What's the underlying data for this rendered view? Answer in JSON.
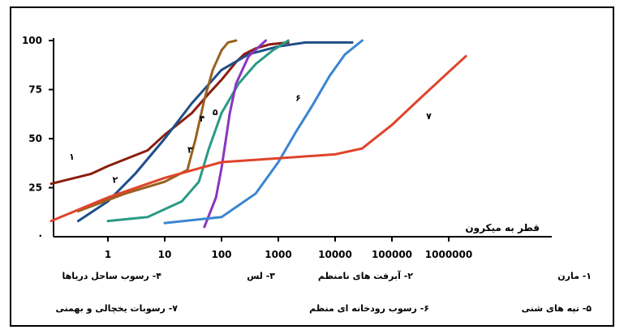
{
  "chart_data": {
    "type": "line",
    "xscale": "log",
    "xlabel": "قطر به میکرون",
    "x_tick_labels": [
      "1",
      "10",
      "100",
      "1000",
      "10000",
      "100000",
      "1000000"
    ],
    "y_tick_labels": [
      "25",
      "50",
      "75",
      "100"
    ],
    "ylim": [
      0,
      100
    ],
    "series": [
      {
        "name": "1",
        "color": "#8a1e0e",
        "x": [
          0.1,
          0.5,
          1,
          5,
          10,
          30,
          60,
          100,
          130,
          180,
          250,
          400,
          700,
          1500
        ],
        "y": [
          27,
          32,
          36,
          44,
          52,
          63,
          73,
          80,
          84,
          89,
          93,
          96,
          98,
          99
        ]
      },
      {
        "name": "2",
        "color": "#1f4e8a",
        "x": [
          0.3,
          1,
          3,
          10,
          30,
          100,
          300,
          1000,
          3000,
          20000
        ],
        "y": [
          8,
          18,
          32,
          50,
          68,
          85,
          93,
          97,
          99,
          99
        ]
      },
      {
        "name": "3",
        "color": "#9a6020",
        "x": [
          0.3,
          2,
          10,
          25,
          35,
          50,
          70,
          100,
          130,
          180
        ],
        "y": [
          13,
          22,
          28,
          34,
          50,
          70,
          85,
          95,
          99,
          100
        ]
      },
      {
        "name": "4",
        "color": "#2a9a84",
        "x": [
          1,
          5,
          20,
          40,
          60,
          100,
          200,
          400,
          800,
          1500
        ],
        "y": [
          8,
          10,
          18,
          28,
          45,
          63,
          78,
          88,
          95,
          100
        ]
      },
      {
        "name": "5",
        "color": "#8a35c0",
        "x": [
          50,
          80,
          100,
          120,
          140,
          180,
          300,
          600
        ],
        "y": [
          5,
          20,
          35,
          50,
          63,
          78,
          92,
          100
        ]
      },
      {
        "name": "6",
        "color": "#3a86d0",
        "x": [
          10,
          100,
          400,
          1000,
          2000,
          4000,
          8000,
          15000,
          30000
        ],
        "y": [
          7,
          10,
          22,
          38,
          53,
          67,
          82,
          93,
          100
        ]
      },
      {
        "name": "7",
        "color": "#e0442a",
        "x": [
          0.1,
          1,
          10,
          100,
          1000,
          10000,
          30000,
          100000,
          300000,
          1000000,
          2000000
        ],
        "y": [
          8,
          20,
          30,
          38,
          40,
          42,
          45,
          57,
          70,
          84,
          92
        ]
      }
    ]
  },
  "legend": [
    "۱- مارن",
    "۲- آبرفت های نامنظم",
    "۳- لس",
    "۴- رسوب ساحل دریاها",
    "۵- تپه های شنی",
    "۶- رسوب رودخانه ای منظم",
    "۷- رسوبات یخچالی و بهمنی"
  ],
  "curve_labels": [
    "۱",
    "۲",
    "۳",
    "۴",
    "۵",
    "۶",
    "۷"
  ]
}
